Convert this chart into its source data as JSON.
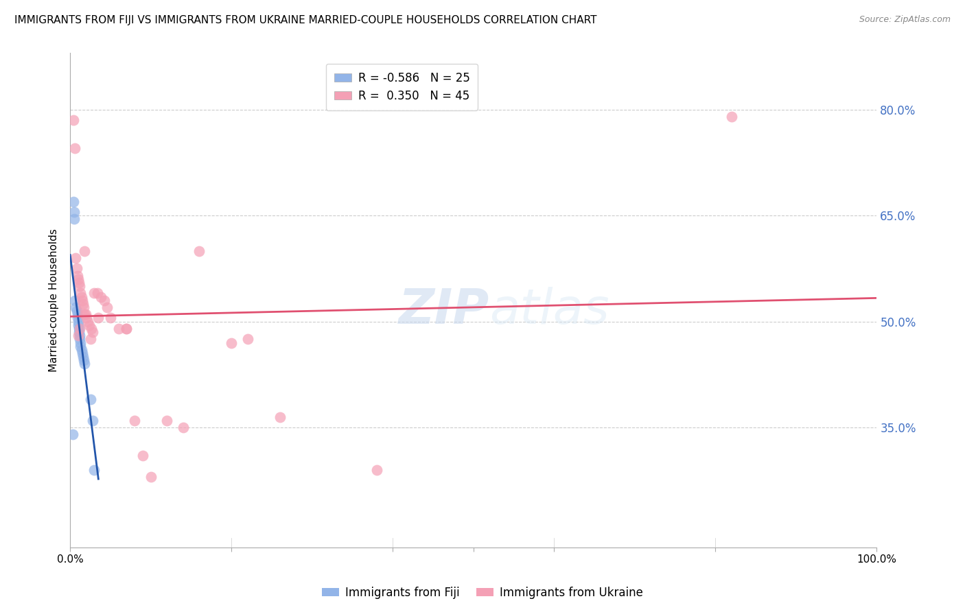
{
  "title": "IMMIGRANTS FROM FIJI VS IMMIGRANTS FROM UKRAINE MARRIED-COUPLE HOUSEHOLDS CORRELATION CHART",
  "source": "Source: ZipAtlas.com",
  "ylabel": "Married-couple Households",
  "ytick_labels": [
    "35.0%",
    "50.0%",
    "65.0%",
    "80.0%"
  ],
  "ytick_values": [
    0.35,
    0.5,
    0.65,
    0.8
  ],
  "xlim": [
    0.0,
    1.0
  ],
  "ylim": [
    0.18,
    0.88
  ],
  "legend_fiji_R": "-0.586",
  "legend_fiji_N": "25",
  "legend_ukraine_R": "0.350",
  "legend_ukraine_N": "45",
  "fiji_color": "#92b4e8",
  "ukraine_color": "#f4a0b5",
  "fiji_line_color": "#2255aa",
  "ukraine_line_color": "#e05070",
  "watermark_zip": "ZIP",
  "watermark_atlas": "atlas",
  "fiji_points_x": [
    0.004,
    0.005,
    0.005,
    0.006,
    0.007,
    0.008,
    0.009,
    0.009,
    0.01,
    0.01,
    0.011,
    0.011,
    0.012,
    0.012,
    0.013,
    0.013,
    0.014,
    0.015,
    0.016,
    0.017,
    0.018,
    0.025,
    0.028,
    0.03,
    0.003
  ],
  "fiji_points_y": [
    0.67,
    0.655,
    0.645,
    0.53,
    0.52,
    0.515,
    0.51,
    0.505,
    0.5,
    0.495,
    0.49,
    0.485,
    0.48,
    0.475,
    0.47,
    0.465,
    0.46,
    0.455,
    0.45,
    0.445,
    0.44,
    0.39,
    0.36,
    0.29,
    0.34
  ],
  "ukraine_points_x": [
    0.004,
    0.006,
    0.007,
    0.008,
    0.009,
    0.01,
    0.011,
    0.012,
    0.013,
    0.014,
    0.015,
    0.016,
    0.017,
    0.018,
    0.019,
    0.02,
    0.022,
    0.024,
    0.026,
    0.028,
    0.03,
    0.034,
    0.038,
    0.042,
    0.046,
    0.05,
    0.06,
    0.07,
    0.08,
    0.09,
    0.1,
    0.12,
    0.14,
    0.16,
    0.2,
    0.22,
    0.26,
    0.38,
    0.82,
    0.01,
    0.012,
    0.018,
    0.025,
    0.035,
    0.07
  ],
  "ukraine_points_y": [
    0.785,
    0.745,
    0.59,
    0.575,
    0.565,
    0.56,
    0.555,
    0.55,
    0.54,
    0.535,
    0.53,
    0.525,
    0.52,
    0.6,
    0.51,
    0.505,
    0.5,
    0.495,
    0.49,
    0.485,
    0.54,
    0.54,
    0.535,
    0.53,
    0.52,
    0.505,
    0.49,
    0.49,
    0.36,
    0.31,
    0.28,
    0.36,
    0.35,
    0.6,
    0.47,
    0.475,
    0.365,
    0.29,
    0.79,
    0.48,
    0.49,
    0.51,
    0.475,
    0.505,
    0.49
  ]
}
